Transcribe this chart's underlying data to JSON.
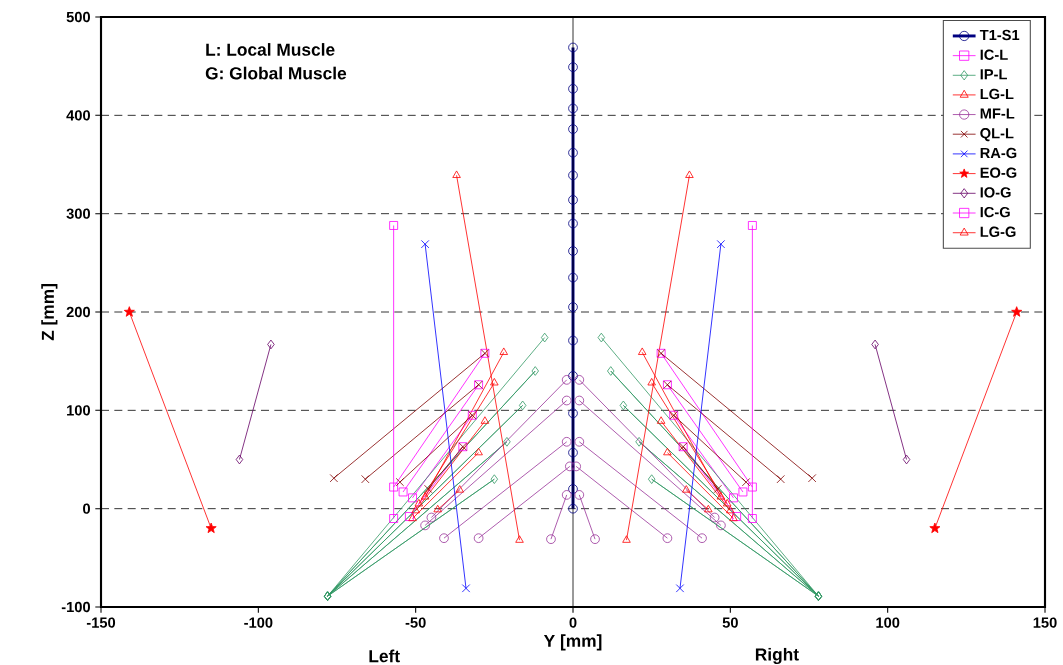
{
  "chart_data": {
    "type": "line",
    "xlabel": "Y [mm]",
    "ylabel": "Z [mm]",
    "xlim": [
      -150,
      150
    ],
    "ylim": [
      -100,
      500
    ],
    "xticks": [
      -150,
      -100,
      -50,
      0,
      50,
      100,
      150
    ],
    "yticks": [
      -100,
      0,
      100,
      200,
      300,
      400,
      500
    ],
    "grid": "y",
    "legend": "top right",
    "ref_lines": [
      {
        "axis": "x",
        "value": 0
      }
    ],
    "annotations": [
      "L: Local Muscle",
      "G: Global Muscle",
      "Left",
      "Right"
    ],
    "series": [
      {
        "name": "T1-S1",
        "color": "#000080",
        "marker": "circle",
        "x": [
          0,
          0,
          0,
          0,
          0,
          0,
          0,
          0,
          0,
          0,
          0,
          0,
          0,
          0,
          0,
          0,
          0,
          0
        ],
        "values": [
          469,
          449,
          427,
          407,
          386,
          362,
          339,
          314,
          290,
          262,
          235,
          205,
          171,
          135,
          97,
          57,
          20,
          0
        ]
      },
      {
        "name": "IC-L",
        "color": "#ff00ff",
        "marker": "square",
        "x": [
          -28,
          -57,
          null,
          -30,
          -54,
          null,
          -32,
          -51,
          null,
          -35,
          -52,
          null,
          28,
          57,
          null,
          30,
          54,
          null,
          32,
          51,
          null,
          35,
          52
        ],
        "values": [
          158,
          22,
          null,
          126,
          17,
          null,
          95,
          11,
          null,
          63,
          -8,
          null,
          158,
          22,
          null,
          126,
          17,
          null,
          95,
          11,
          null,
          63,
          -8
        ]
      },
      {
        "name": "IP-L",
        "color": "#339966",
        "marker": "diamond",
        "x": [
          -9,
          -78,
          -12,
          -78,
          -16,
          -78,
          -21,
          -78,
          -25,
          -78,
          null,
          9,
          78,
          12,
          78,
          16,
          78,
          21,
          78,
          25,
          78
        ],
        "values": [
          174,
          -89,
          140,
          -89,
          105,
          -89,
          68,
          -89,
          30,
          -89,
          null,
          174,
          -89,
          140,
          -89,
          105,
          -89,
          68,
          -89,
          30,
          -89
        ]
      },
      {
        "name": "LG-L",
        "color": "#ff0000",
        "marker": "triangle",
        "x": [
          -22,
          -47,
          null,
          -25,
          -49,
          null,
          -28,
          -50,
          null,
          -30,
          -51,
          null,
          -36,
          -43,
          null,
          22,
          47,
          null,
          25,
          49,
          null,
          28,
          50,
          null,
          30,
          51,
          null,
          36,
          43
        ],
        "values": [
          159,
          12,
          null,
          128,
          5,
          null,
          89,
          -2,
          null,
          57,
          -10,
          null,
          19,
          -1,
          null,
          159,
          12,
          null,
          128,
          5,
          null,
          89,
          -2,
          null,
          57,
          -10,
          null,
          19,
          -1
        ]
      },
      {
        "name": "MF-L",
        "color": "#993399",
        "marker": "circle",
        "x": [
          -2,
          -45,
          null,
          -2,
          -47,
          null,
          -2,
          -41,
          null,
          -1,
          -30,
          null,
          -2,
          -7,
          null,
          2,
          45,
          null,
          2,
          47,
          null,
          2,
          41,
          null,
          1,
          30,
          null,
          2,
          7
        ],
        "values": [
          131,
          -9,
          null,
          110,
          -17,
          null,
          68,
          -30,
          null,
          43,
          -30,
          null,
          14,
          -31,
          null,
          131,
          -9,
          null,
          110,
          -17,
          null,
          68,
          -30,
          null,
          43,
          -30,
          null,
          14,
          -31
        ]
      },
      {
        "name": "QL-L",
        "color": "#800000",
        "marker": "cross",
        "x": [
          -76,
          -28,
          null,
          -66,
          -30,
          null,
          -55,
          -32,
          null,
          -46,
          -35,
          null,
          76,
          28,
          null,
          66,
          30,
          null,
          55,
          32,
          null,
          46,
          35
        ],
        "values": [
          31,
          158,
          null,
          30,
          126,
          null,
          27,
          95,
          null,
          20,
          63,
          null,
          31,
          158,
          null,
          30,
          126,
          null,
          27,
          95,
          null,
          20,
          63
        ]
      },
      {
        "name": "RA-G",
        "color": "#0000ff",
        "marker": "cross",
        "x": [
          -47,
          -34,
          null,
          47,
          34
        ],
        "values": [
          269,
          -81,
          null,
          269,
          -81
        ]
      },
      {
        "name": "EO-G",
        "color": "#ff0000",
        "marker": "star",
        "x": [
          -141,
          -115,
          null,
          141,
          115
        ],
        "values": [
          200,
          -20,
          null,
          200,
          -20
        ]
      },
      {
        "name": "IO-G",
        "color": "#660066",
        "marker": "diamond",
        "x": [
          -96,
          -106,
          null,
          96,
          106
        ],
        "values": [
          167,
          50,
          null,
          167,
          50
        ]
      },
      {
        "name": "IC-G",
        "color": "#ff00ff",
        "marker": "square",
        "x": [
          -57,
          -57,
          null,
          57,
          57
        ],
        "values": [
          288,
          -10,
          null,
          288,
          -10
        ]
      },
      {
        "name": "LG-G",
        "color": "#ff0000",
        "marker": "triangle",
        "x": [
          -37,
          -17,
          null,
          37,
          17
        ],
        "values": [
          339,
          -32,
          null,
          339,
          -32
        ]
      }
    ]
  }
}
